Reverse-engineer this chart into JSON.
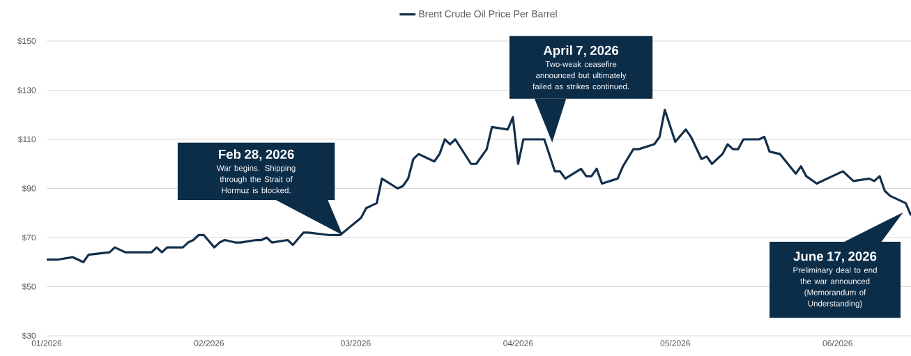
{
  "chart_data": {
    "type": "line",
    "x": [
      "2026-01-01",
      "2026-01-03",
      "2026-01-06",
      "2026-01-07",
      "2026-01-08",
      "2026-01-09",
      "2026-01-13",
      "2026-01-14",
      "2026-01-15",
      "2026-01-16",
      "2026-01-17",
      "2026-01-20",
      "2026-01-21",
      "2026-01-22",
      "2026-01-23",
      "2026-01-24",
      "2026-01-27",
      "2026-01-28",
      "2026-01-29",
      "2026-01-30",
      "2026-01-31",
      "2026-02-02",
      "2026-02-03",
      "2026-02-04",
      "2026-02-06",
      "2026-02-07",
      "2026-02-10",
      "2026-02-11",
      "2026-02-12",
      "2026-02-13",
      "2026-02-16",
      "2026-02-17",
      "2026-02-19",
      "2026-02-20",
      "2026-02-24",
      "2026-02-26",
      "2026-03-02",
      "2026-03-03",
      "2026-03-04",
      "2026-03-05",
      "2026-03-06",
      "2026-03-09",
      "2026-03-10",
      "2026-03-11",
      "2026-03-12",
      "2026-03-13",
      "2026-03-16",
      "2026-03-17",
      "2026-03-18",
      "2026-03-19",
      "2026-03-20",
      "2026-03-23",
      "2026-03-24",
      "2026-03-26",
      "2026-03-27",
      "2026-03-30",
      "2026-03-31",
      "2026-04-01",
      "2026-04-02",
      "2026-04-06",
      "2026-04-08",
      "2026-04-09",
      "2026-04-10",
      "2026-04-13",
      "2026-04-14",
      "2026-04-15",
      "2026-04-16",
      "2026-04-17",
      "2026-04-20",
      "2026-04-21",
      "2026-04-23",
      "2026-04-24",
      "2026-04-27",
      "2026-04-28",
      "2026-04-29",
      "2026-05-01",
      "2026-05-03",
      "2026-05-04",
      "2026-05-06",
      "2026-05-07",
      "2026-05-08",
      "2026-05-10",
      "2026-05-11",
      "2026-05-12",
      "2026-05-13",
      "2026-05-14",
      "2026-05-17",
      "2026-05-18",
      "2026-05-19",
      "2026-05-21",
      "2026-05-24",
      "2026-05-25",
      "2026-05-26",
      "2026-05-28",
      "2026-05-31",
      "2026-06-02",
      "2026-06-04",
      "2026-06-07",
      "2026-06-08",
      "2026-06-09",
      "2026-06-10",
      "2026-06-11",
      "2026-06-14",
      "2026-06-15"
    ],
    "series": [
      {
        "name": "Brent Crude Oil Price Per Barrel",
        "color": "#132f4c",
        "values": [
          61,
          61,
          62,
          61,
          60,
          63,
          64,
          66,
          65,
          64,
          64,
          64,
          64,
          66,
          64,
          66,
          66,
          68,
          69,
          71,
          71,
          66,
          68,
          69,
          68,
          68,
          69,
          69,
          70,
          68,
          69,
          67,
          72,
          72,
          71,
          71,
          78,
          82,
          83,
          84,
          94,
          90,
          91,
          94,
          102,
          104,
          101,
          104,
          110,
          108,
          110,
          100,
          100,
          106,
          115,
          114,
          119,
          100,
          110,
          110,
          97,
          97,
          94,
          98,
          95,
          95,
          98,
          92,
          94,
          99,
          106,
          106,
          108,
          111,
          122,
          109,
          114,
          111,
          102,
          103,
          100,
          104,
          108,
          106,
          106,
          110,
          110,
          111,
          105,
          104,
          96,
          99,
          95,
          92,
          95,
          97,
          93,
          94,
          93,
          95,
          89,
          87,
          84,
          79
        ]
      }
    ],
    "xlim": [
      "2026-01-01",
      "2026-06-15"
    ],
    "xticks": [
      {
        "value": "2026-01-01",
        "label": "01/2026"
      },
      {
        "value": "2026-02-01",
        "label": "02/2026"
      },
      {
        "value": "2026-03-01",
        "label": "03/2026"
      },
      {
        "value": "2026-04-01",
        "label": "04/2026"
      },
      {
        "value": "2026-05-01",
        "label": "05/2026"
      },
      {
        "value": "2026-06-01",
        "label": "06/2026"
      }
    ],
    "ylim": [
      30,
      150
    ],
    "yticks": [
      {
        "value": 30,
        "label": "$30"
      },
      {
        "value": 50,
        "label": "$50"
      },
      {
        "value": 70,
        "label": "$70"
      },
      {
        "value": 90,
        "label": "$90"
      },
      {
        "value": 110,
        "label": "$110"
      },
      {
        "value": 130,
        "label": "$130"
      },
      {
        "value": 150,
        "label": "$150"
      }
    ],
    "grid": "y",
    "legend": "top",
    "annotations": [
      "Feb 28, 2026",
      "War begins. Shipping through the Strait of Hormuz is blocked.",
      "April 7, 2026",
      "Two-weak ceasefire announced but ultimately failed as strikes continued.",
      "June 17, 2026",
      "Preliminary deal to end the war announced (Memorandum of Understanding)"
    ]
  }
}
